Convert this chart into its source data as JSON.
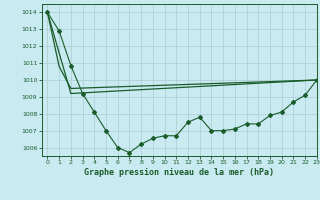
{
  "title": "Graphe pression niveau de la mer (hPa)",
  "background_color": "#c8eaf0",
  "grid_color": "#b0d0d8",
  "line_color": "#1a5c2a",
  "xlim": [
    -0.5,
    23
  ],
  "ylim": [
    1005.5,
    1014.5
  ],
  "yticks": [
    1006,
    1007,
    1008,
    1009,
    1010,
    1011,
    1012,
    1013,
    1014
  ],
  "xticks": [
    0,
    1,
    2,
    3,
    4,
    5,
    6,
    7,
    8,
    9,
    10,
    11,
    12,
    13,
    14,
    15,
    16,
    17,
    18,
    19,
    20,
    21,
    22,
    23
  ],
  "series1_x": [
    0,
    1,
    2,
    3,
    4,
    5,
    6,
    7,
    8,
    9,
    10,
    11,
    12,
    13,
    14,
    15,
    16,
    17,
    18,
    19,
    20,
    21,
    22,
    23
  ],
  "series1_y": [
    1014.0,
    1012.9,
    1010.85,
    1009.2,
    1008.1,
    1007.0,
    1006.0,
    1005.7,
    1006.2,
    1006.55,
    1006.7,
    1006.7,
    1007.5,
    1007.8,
    1007.0,
    1007.0,
    1007.1,
    1007.4,
    1007.4,
    1007.9,
    1008.1,
    1008.7,
    1009.1,
    1010.0
  ],
  "series2_x": [
    0,
    1,
    2,
    23
  ],
  "series2_y": [
    1014.0,
    1010.8,
    1009.5,
    1010.0
  ],
  "series3_x": [
    0,
    2,
    23
  ],
  "series3_y": [
    1014.0,
    1009.2,
    1010.0
  ]
}
